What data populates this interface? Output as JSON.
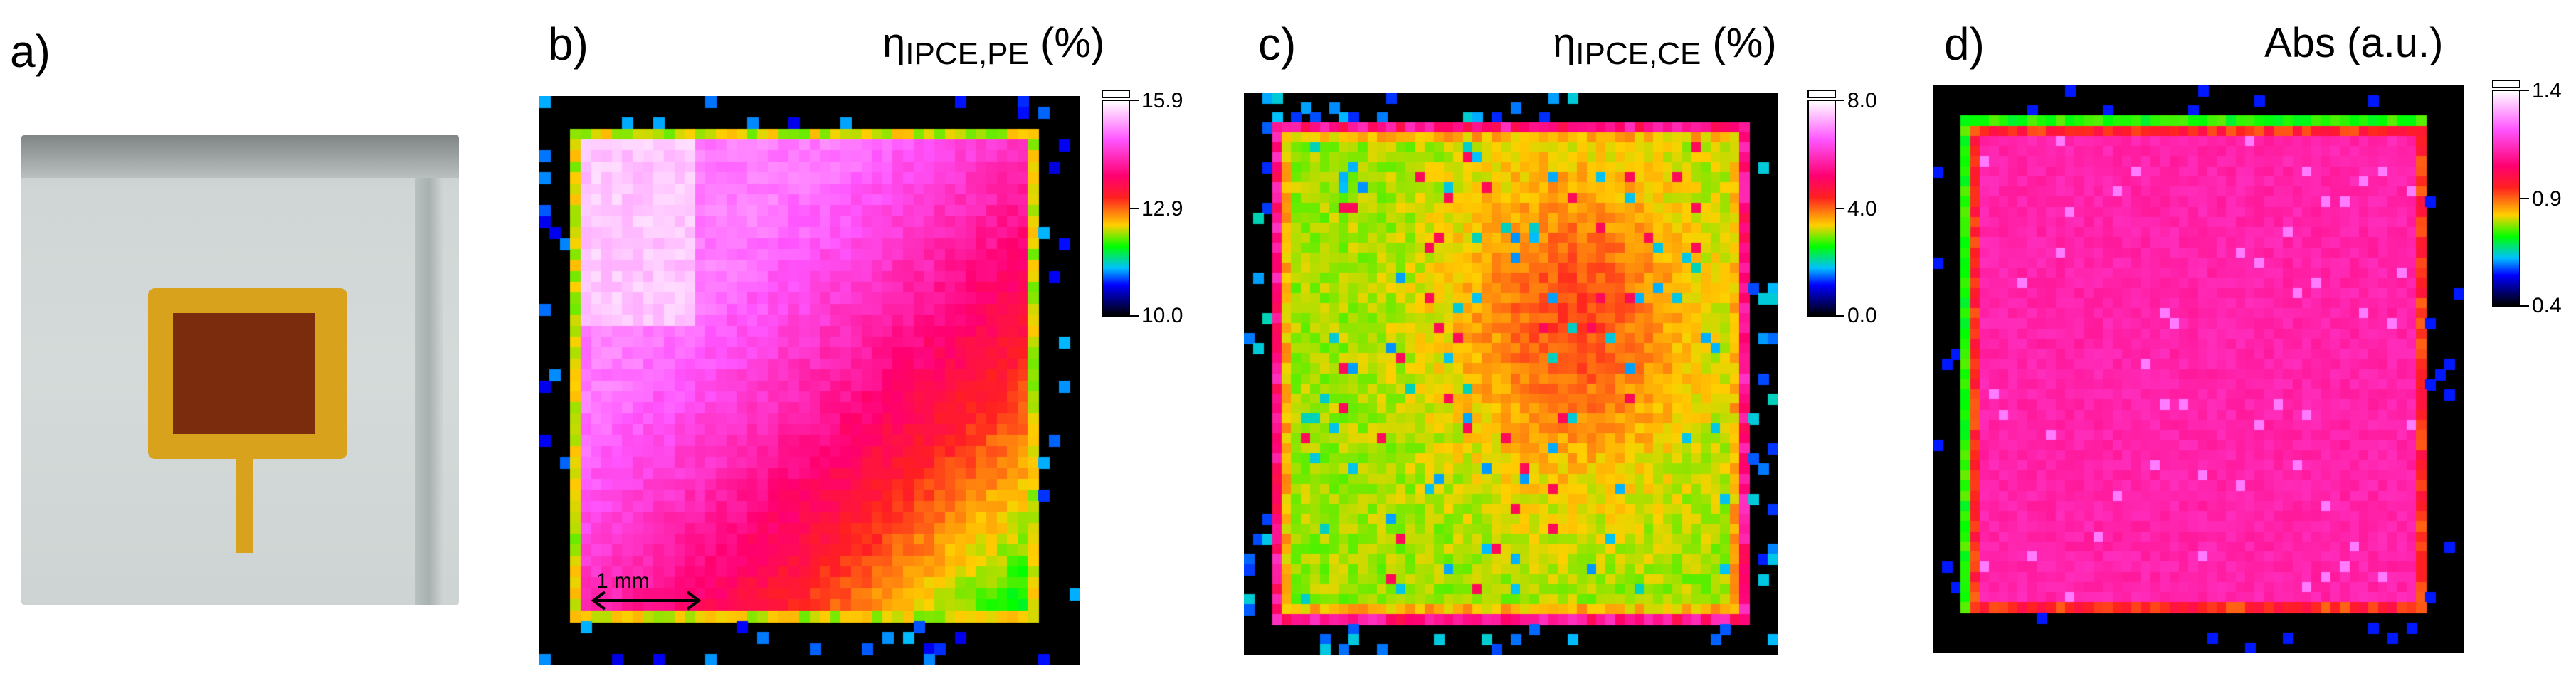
{
  "panels": {
    "a": {
      "label": "a)"
    },
    "b": {
      "label": "b)",
      "title_main": "η",
      "title_sub": "IPCE,PE",
      "title_unit": " (%)",
      "colorbar": {
        "max": "15.9",
        "mid": "12.9",
        "min": "10.0"
      },
      "scalebar": "1 mm"
    },
    "c": {
      "label": "c)",
      "title_main": "η",
      "title_sub": "IPCE,CE",
      "title_unit": " (%)",
      "colorbar": {
        "max": "8.0",
        "mid": "4.0",
        "min": "0.0"
      }
    },
    "d": {
      "label": "d)",
      "title": "Abs (a.u.)",
      "colorbar": {
        "max": "1.4",
        "mid": "0.9",
        "min": "0.4"
      }
    }
  },
  "chart_data": [
    {
      "type": "heatmap",
      "title": "ηIPCE,PE (%)",
      "zlim": [
        10.0,
        15.9
      ],
      "colorbar_ticks": [
        10.0,
        12.9,
        15.9
      ],
      "pattern": "high (magenta/white) at top-left, decreasing to yellow/green at bottom-right; dark border outside film",
      "scale": "1 mm"
    },
    {
      "type": "heatmap",
      "title": "ηIPCE,CE (%)",
      "zlim": [
        0.0,
        8.0
      ],
      "colorbar_ticks": [
        0.0,
        4.0,
        8.0
      ],
      "pattern": "orange/red core on right-center, yellow-green elsewhere, red rim near edges"
    },
    {
      "type": "heatmap",
      "title": "Abs (a.u.)",
      "zlim": [
        0.4,
        1.4
      ],
      "colorbar_ticks": [
        0.4,
        0.9,
        1.4
      ],
      "pattern": "uniform magenta/pink interior, red-to-green rim, dark outside"
    }
  ],
  "colors": {
    "background": "#ffffff",
    "outside": "#000000",
    "bar_border": "#000000"
  }
}
